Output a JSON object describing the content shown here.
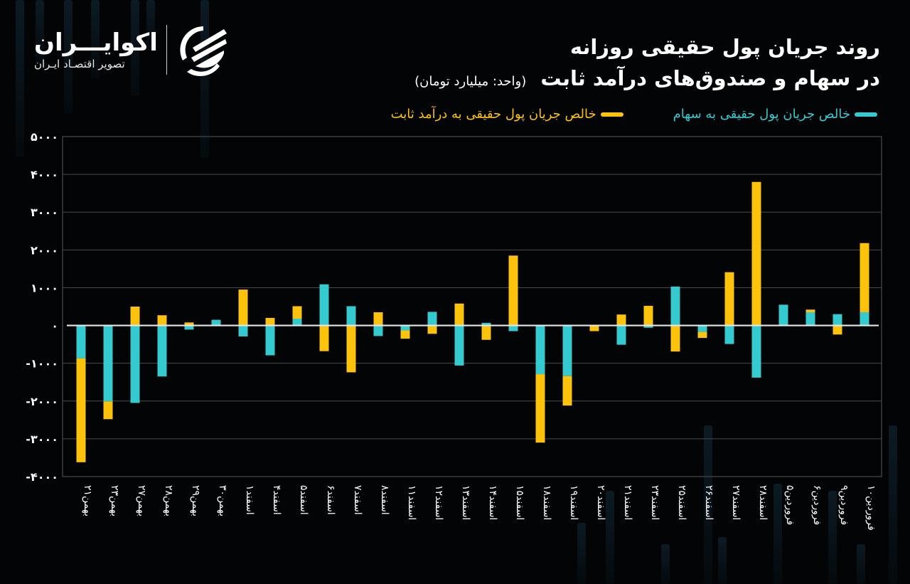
{
  "brand": {
    "name": "اکوایـــران",
    "tagline": "تصویر اقتصـاد ایـران",
    "logo_icon": "ecoiran-swirl-logo"
  },
  "title": {
    "line1": "روند جریان پول حقیقی روزانه",
    "line2": "در سهام و صندوق‌های درآمد ثابت",
    "unit": "(واحد: میلیارد تومان)"
  },
  "legend": [
    {
      "label": "خالص جریان پول حقیقی به سهام",
      "color": "#35C9D0"
    },
    {
      "label": "خالص جریان پول حقیقی به درآمد ثابت",
      "color": "#FDC20B"
    }
  ],
  "colors": {
    "background": "#030405",
    "stock": "#35C9D0",
    "fixed_income": "#FDC20B",
    "grid": "#4a4a4a",
    "zero_line": "#e6e6e6"
  },
  "chart_data": {
    "type": "bar",
    "stacked": true,
    "title": "روند جریان پول حقیقی روزانه در سهام و صندوق‌های درآمد ثابت",
    "subtitle": "(واحد: میلیارد تومان)",
    "xlabel": "",
    "ylabel": "",
    "ylim": [
      -4000,
      5000
    ],
    "yticks": [
      5000,
      4000,
      3000,
      2000,
      1000,
      0,
      -1000,
      -2000,
      -3000,
      -4000
    ],
    "ytick_labels": [
      "۵۰۰۰",
      "۴۰۰۰",
      "۳۰۰۰",
      "۲۰۰۰",
      "۱۰۰۰",
      "۰",
      "-۱۰۰۰",
      "-۲۰۰۰",
      "-۳۰۰۰",
      "-۴۰۰۰"
    ],
    "grid": true,
    "legend_position": "top-right",
    "categories": [
      "بهمن۲۱",
      "بهمن۲۳",
      "بهمن۲۷",
      "بهمن۲۸",
      "بهمن۲۹",
      "بهمن۳۰",
      "اسفند۱",
      "اسفند۴",
      "اسفند۵",
      "اسفند۶",
      "اسفند۷",
      "اسفند۸",
      "اسفند۱۱",
      "اسفند۱۲",
      "اسفند۱۳",
      "اسفند۱۴",
      "اسفند۱۵",
      "اسفند۱۸",
      "اسفند۱۹",
      "اسفند۲۰",
      "اسفند۲۱",
      "اسفند۲۳",
      "اسفند۲۵",
      "اسفند۲۶",
      "اسفند۲۷",
      "اسفند۲۸",
      "فروردین۵",
      "فروردین۶",
      "فروردین۹",
      "فروردین۱۰"
    ],
    "series": [
      {
        "name": "خالص جریان پول حقیقی به سهام",
        "color": "#35C9D0",
        "values": [
          -870,
          -2010,
          -2050,
          -1350,
          -110,
          150,
          -290,
          -790,
          180,
          1090,
          510,
          -280,
          -130,
          360,
          -1060,
          70,
          -150,
          -1290,
          -1340,
          0,
          -510,
          -60,
          1030,
          -170,
          -490,
          -1380,
          550,
          350,
          300,
          350
        ]
      },
      {
        "name": "خالص جریان پول حقیقی به درآمد ثابت",
        "color": "#FDC20B",
        "values": [
          -2750,
          -470,
          500,
          270,
          80,
          0,
          950,
          200,
          330,
          -680,
          -1240,
          350,
          -220,
          -220,
          580,
          -380,
          1850,
          -1810,
          -780,
          -150,
          290,
          520,
          -690,
          -160,
          1410,
          3800,
          0,
          70,
          -240,
          1830
        ]
      }
    ]
  }
}
